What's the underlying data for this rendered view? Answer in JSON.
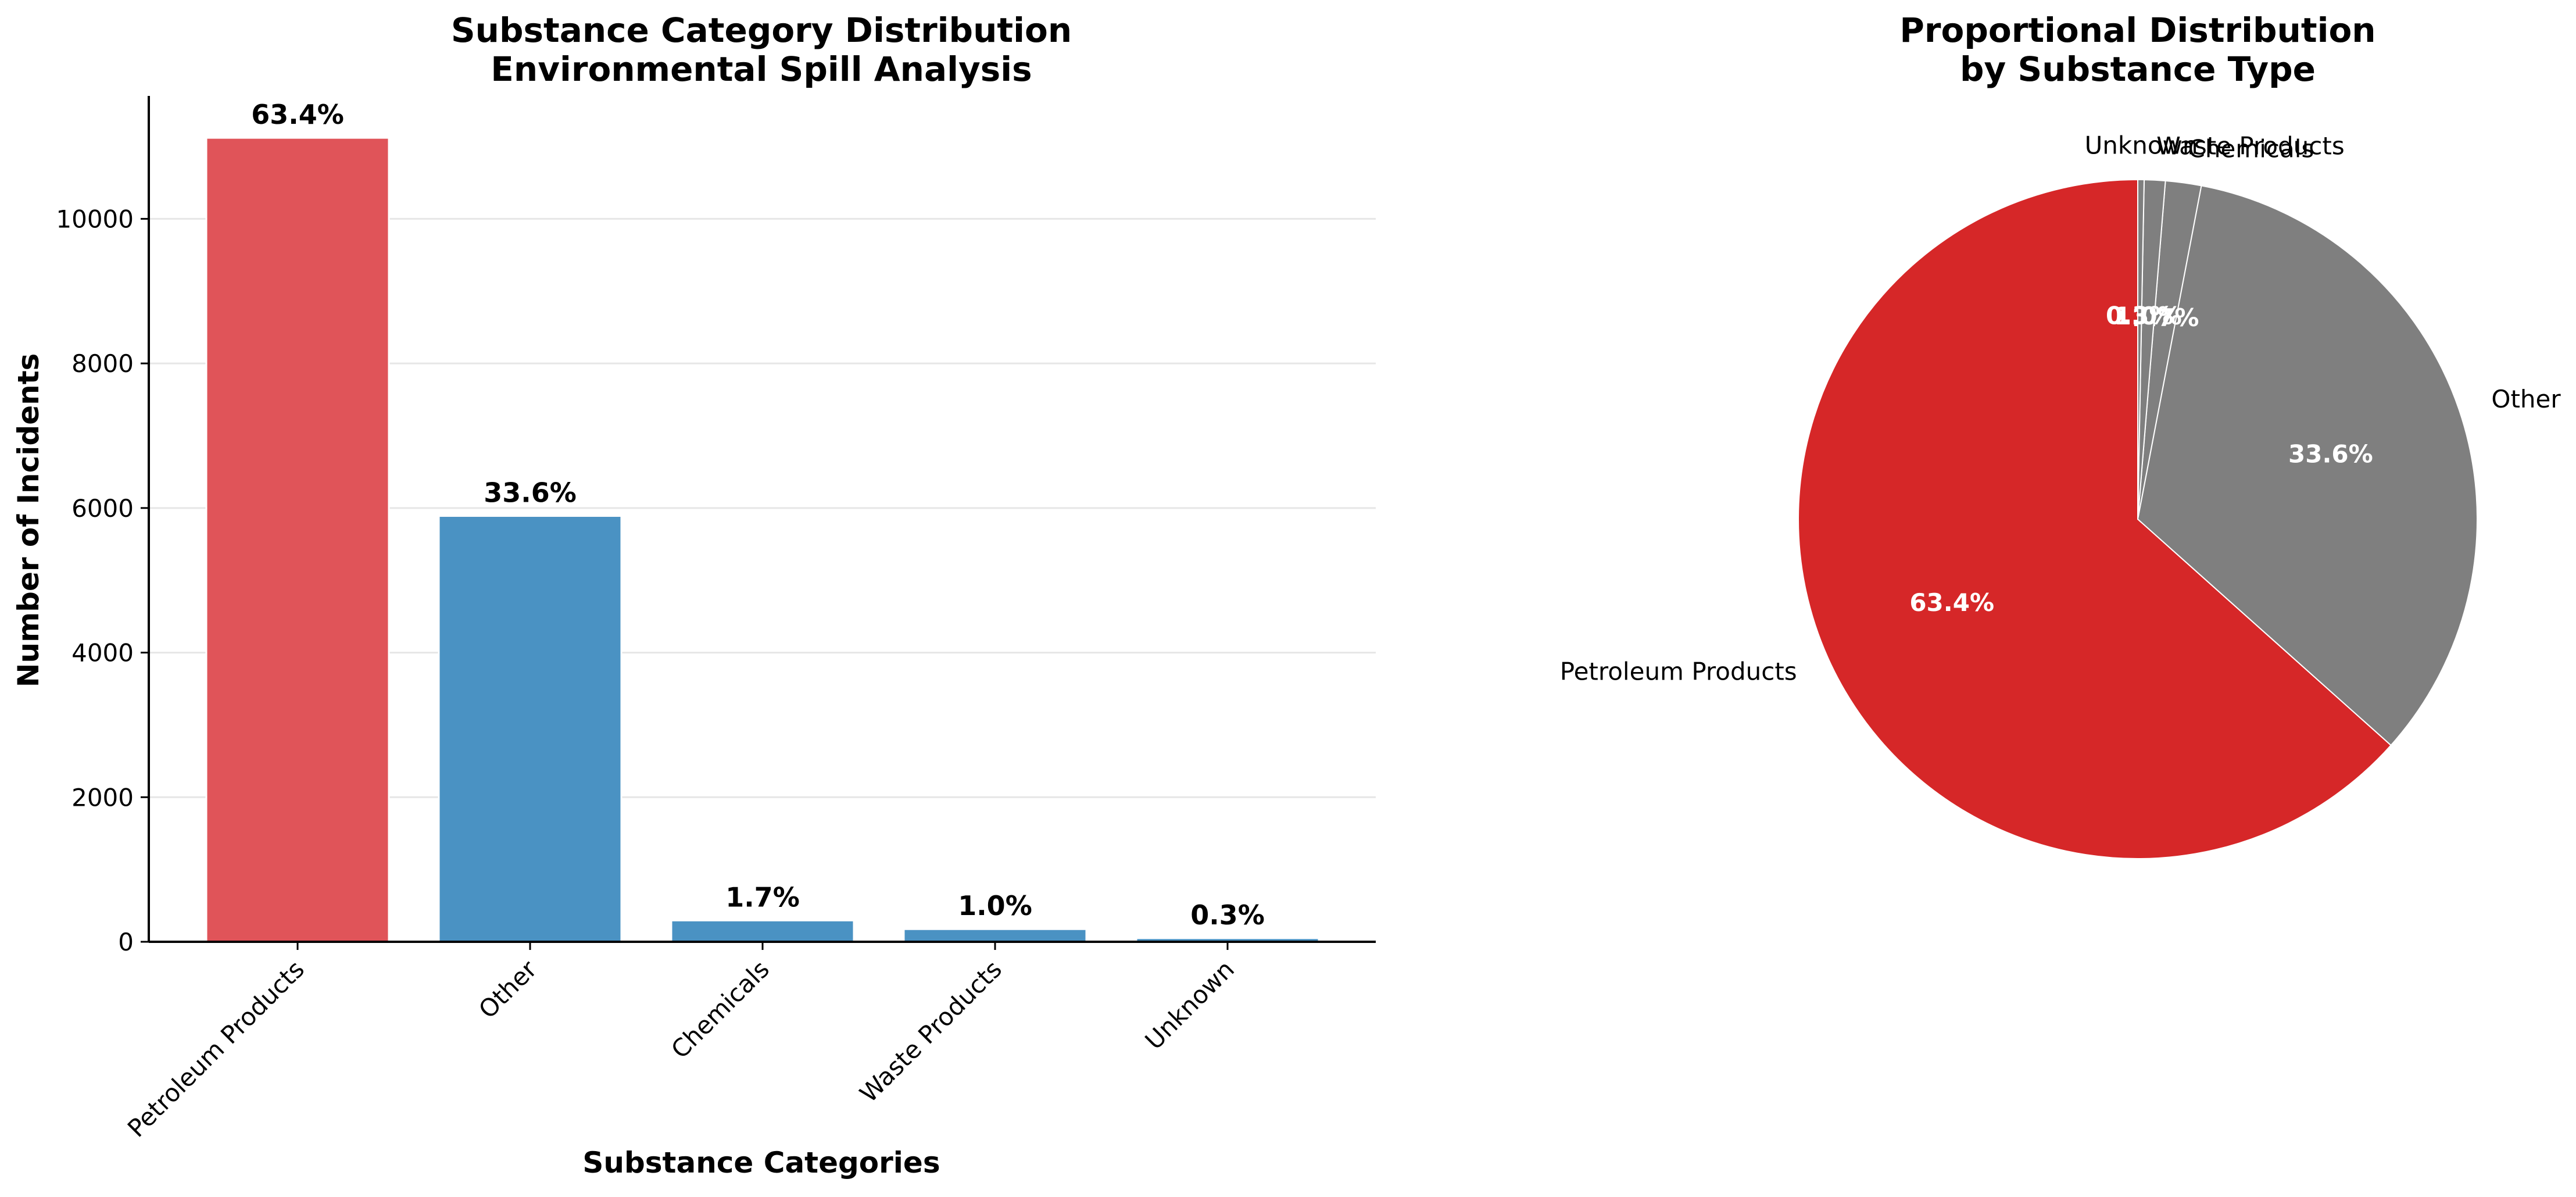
{
  "chart_data": [
    {
      "type": "bar",
      "title": "Substance Category Distribution\nEnvironmental Spill Analysis",
      "xlabel": "Substance Categories",
      "ylabel": "Number of Incidents",
      "categories": [
        "Petroleum Products",
        "Other",
        "Chemicals",
        "Waste Products",
        "Unknown"
      ],
      "values": [
        11120,
        5890,
        295,
        175,
        50
      ],
      "data_labels": [
        "63.4%",
        "33.6%",
        "1.7%",
        "1.0%",
        "0.3%"
      ],
      "ylim": [
        0,
        11700
      ],
      "yticks": [
        0,
        2000,
        4000,
        6000,
        8000,
        10000
      ],
      "grid": "horizontal",
      "colors": [
        "#e05459",
        "#4a92c3",
        "#4a92c3",
        "#4a92c3",
        "#4a92c3"
      ]
    },
    {
      "type": "pie",
      "title": "Proportional Distribution\nby Substance Type",
      "categories": [
        "Petroleum Products",
        "Other",
        "Chemicals",
        "Waste Products",
        "Unknown"
      ],
      "values": [
        63.4,
        33.6,
        1.7,
        1.0,
        0.3
      ],
      "data_labels": [
        "63.4%",
        "33.6%",
        "1.7%",
        "1.0%",
        "0.3%"
      ],
      "colors": [
        "#d62728",
        "#7f7f7f",
        "#7f7f7f",
        "#7f7f7f",
        "#7f7f7f"
      ]
    }
  ]
}
